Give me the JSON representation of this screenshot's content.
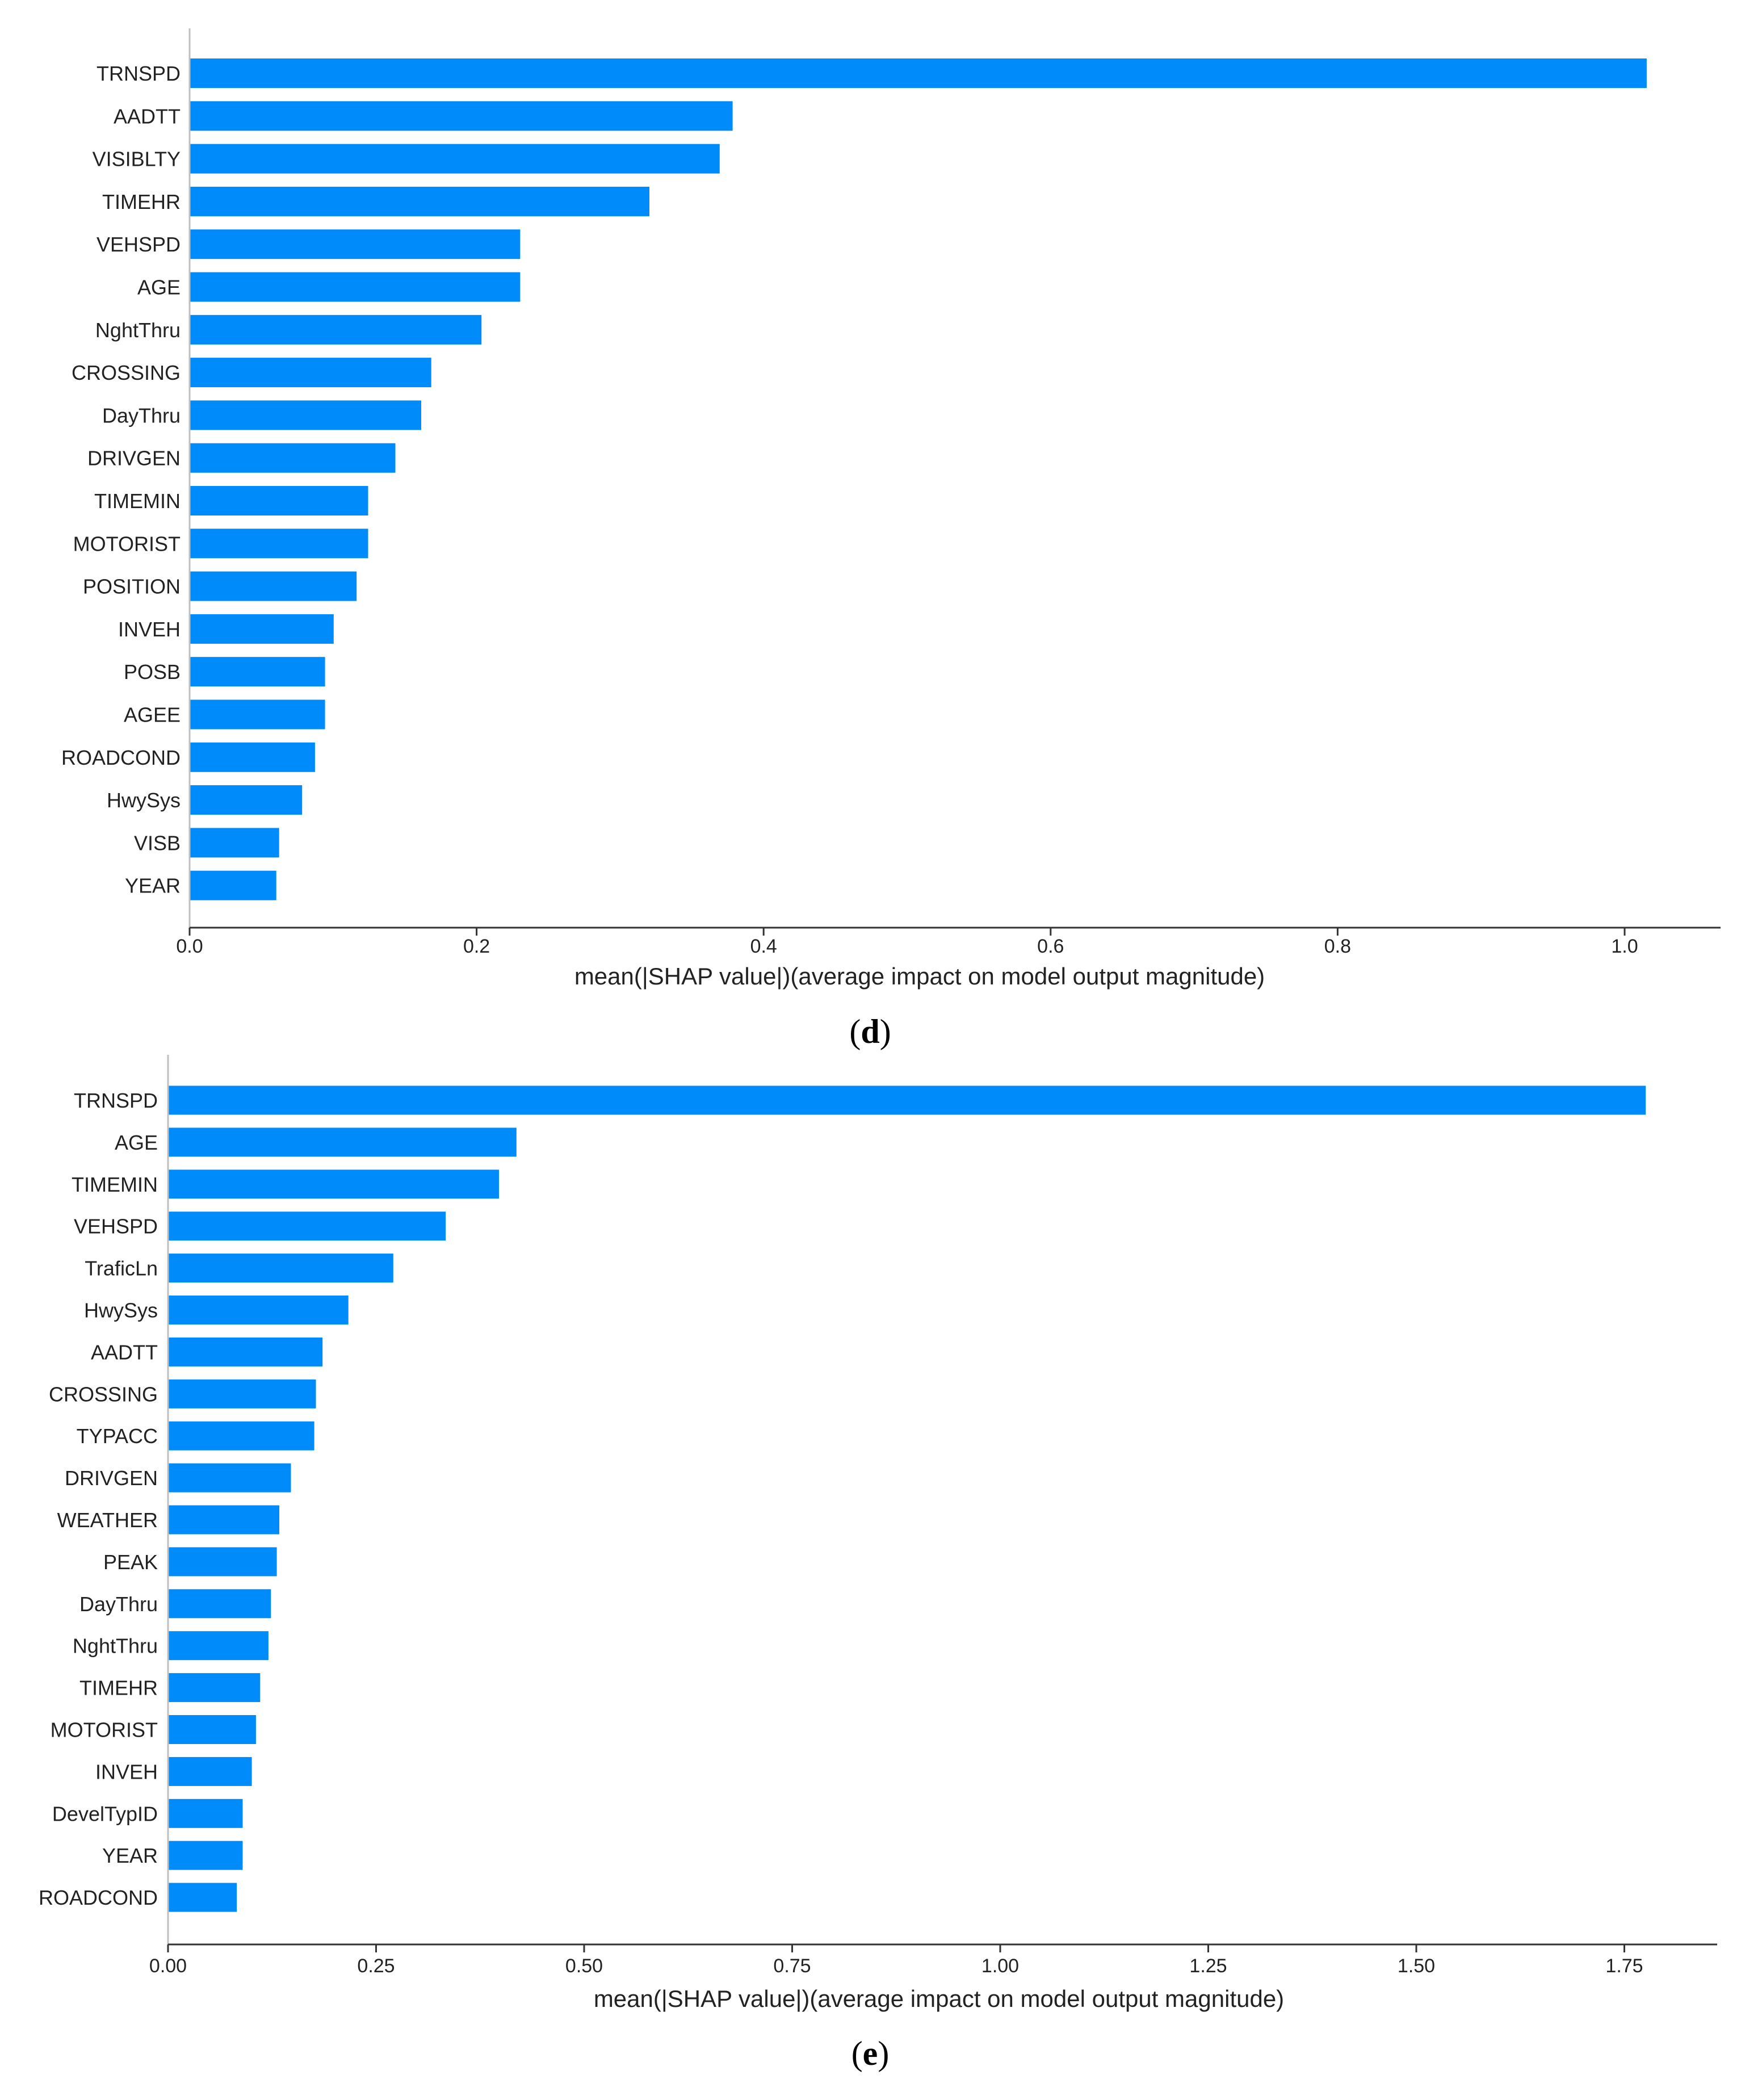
{
  "chart_data": [
    {
      "type": "bar",
      "orientation": "horizontal",
      "panel_label": "d",
      "xlabel": "mean(|SHAP value|)(average impact on model output magnitude)",
      "xlim": [
        0,
        1.07
      ],
      "xticks": [
        "0.0",
        "0.2",
        "0.4",
        "0.6",
        "0.8",
        "1.0"
      ],
      "bar_color": "#008bfb",
      "categories": [
        "TRNSPD",
        "AADTT",
        "VISIBLTY",
        "TIMEHR",
        "VEHSPD",
        "AGE",
        "NghtThru",
        "CROSSING",
        "DayThru",
        "DRIVGEN",
        "TIMEMIN",
        "MOTORIST",
        "POSITION",
        "INVEH",
        "POSB",
        "AGEE",
        "ROADCOND",
        "HwySys",
        "VISB",
        "YEAR"
      ],
      "values": [
        1.015,
        0.378,
        0.369,
        0.32,
        0.23,
        0.23,
        0.203,
        0.168,
        0.161,
        0.143,
        0.124,
        0.124,
        0.116,
        0.1,
        0.094,
        0.094,
        0.087,
        0.078,
        0.062,
        0.06
      ]
    },
    {
      "type": "bar",
      "orientation": "horizontal",
      "panel_label": "e",
      "xlabel": "mean(|SHAP value|)(average impact on model output magnitude)",
      "xlim": [
        0,
        1.86
      ],
      "xticks": [
        "0.00",
        "0.25",
        "0.50",
        "0.75",
        "1.00",
        "1.25",
        "1.50",
        "1.75"
      ],
      "bar_color": "#008bfb",
      "categories": [
        "TRNSPD",
        "AGE",
        "TIMEMIN",
        "VEHSPD",
        "TraficLn",
        "HwySys",
        "AADTT",
        "CROSSING",
        "TYPACC",
        "DRIVGEN",
        "WEATHER",
        "PEAK",
        "DayThru",
        "NghtThru",
        "TIMEHR",
        "MOTORIST",
        "INVEH",
        "DevelTypID",
        "YEAR",
        "ROADCOND"
      ],
      "values": [
        1.775,
        0.418,
        0.397,
        0.333,
        0.27,
        0.216,
        0.185,
        0.177,
        0.175,
        0.147,
        0.133,
        0.13,
        0.123,
        0.12,
        0.11,
        0.105,
        0.1,
        0.089,
        0.089,
        0.082
      ]
    }
  ]
}
